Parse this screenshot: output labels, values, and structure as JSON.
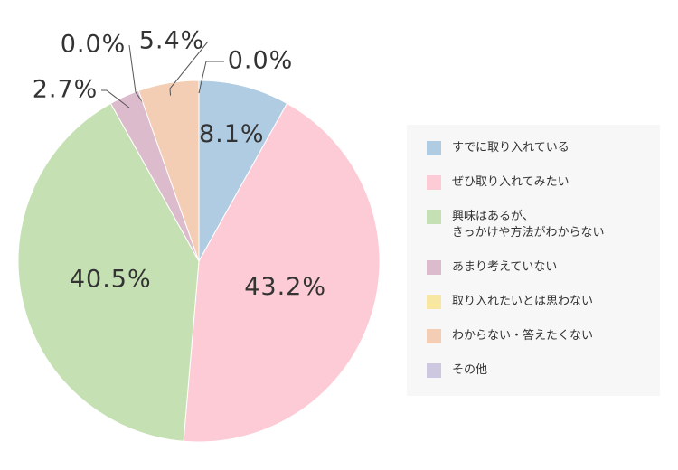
{
  "chart_data": {
    "type": "pie",
    "categories": [
      "すでに取り入れている",
      "ぜひ取り入れてみたい",
      "興味はあるが、\nきっかけや方法がわからない",
      "あまり考えていない",
      "取り入れたいとは思わない",
      "わからない・答えたくない",
      "その他"
    ],
    "values": [
      8.1,
      43.2,
      40.5,
      2.7,
      0.0,
      5.4,
      0.0
    ],
    "value_labels": [
      "8.1%",
      "43.2%",
      "40.5%",
      "2.7%",
      "0.0%",
      "5.4%",
      "0.0%"
    ],
    "colors": [
      "#b0cce3",
      "#fdcbd5",
      "#c5e1b3",
      "#dcbccc",
      "#f8e7a3",
      "#f4cdb5",
      "#cdc8e0"
    ]
  }
}
